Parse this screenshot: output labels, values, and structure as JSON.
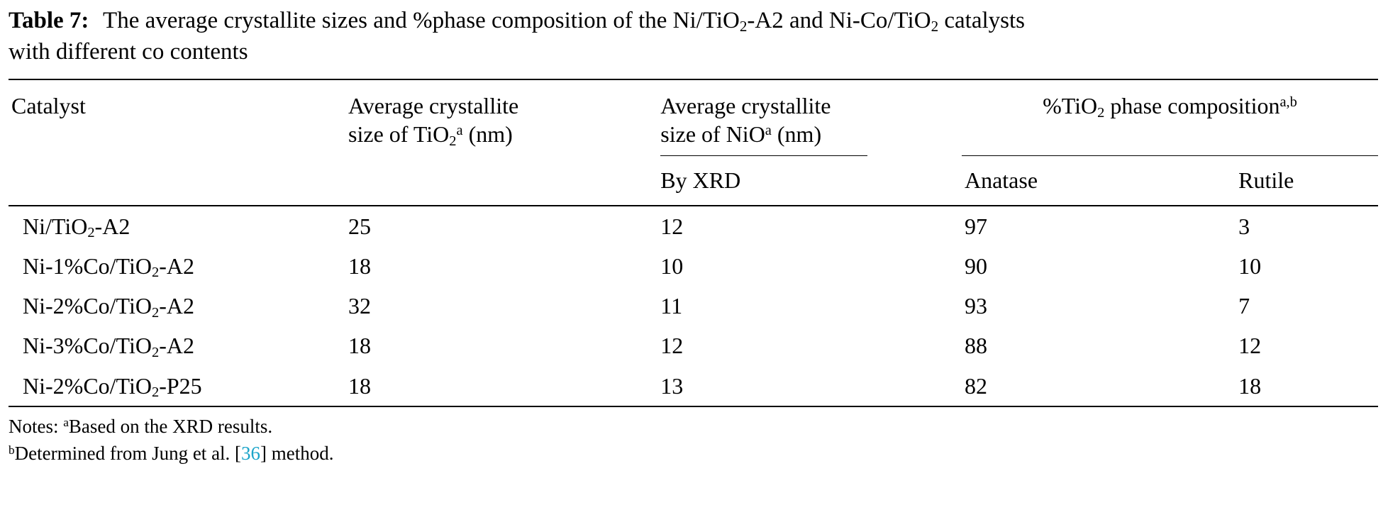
{
  "caption": {
    "label": "Table 7:",
    "text": " The average crystallite sizes and %phase composition of the Ni/TiO~2~-A2 and Ni-Co/TiO~2~ catalysts\nwith different co contents"
  },
  "table": {
    "headers": {
      "catalyst": "Catalyst",
      "tio2_size": "Average crystallite\nsize of TiO~2~^a^ (nm)",
      "nio_size": "Average crystallite\nsize of NiO^a^ (nm)",
      "phase": "%TiO~2~ phase composition^a,b^",
      "by_xrd": "By XRD",
      "anatase": "Anatase",
      "rutile": "Rutile"
    },
    "rows": [
      {
        "catalyst": "Ni/TiO~2~-A2",
        "tio2": "25",
        "nio": "12",
        "anatase": "97",
        "rutile": "3"
      },
      {
        "catalyst": "Ni-1%Co/TiO~2~-A2",
        "tio2": "18",
        "nio": "10",
        "anatase": "90",
        "rutile": "10"
      },
      {
        "catalyst": "Ni-2%Co/TiO~2~-A2",
        "tio2": "32",
        "nio": "11",
        "anatase": "93",
        "rutile": "7"
      },
      {
        "catalyst": "Ni-3%Co/TiO~2~-A2",
        "tio2": "18",
        "nio": "12",
        "anatase": "88",
        "rutile": "12"
      },
      {
        "catalyst": "Ni-2%Co/TiO~2~-P25",
        "tio2": "18",
        "nio": "13",
        "anatase": "82",
        "rutile": "18"
      }
    ]
  },
  "notes": {
    "line_a": "Notes: ^a^Based on the XRD results.",
    "line_b_prefix": "^b^Determined from Jung et al. [",
    "line_b_ref": "36",
    "line_b_suffix": "] method."
  },
  "theme": {
    "text-color": "#000000",
    "rule-color": "#000000",
    "page-background": "#ffffff",
    "ref-color": "#1ba4c9"
  }
}
